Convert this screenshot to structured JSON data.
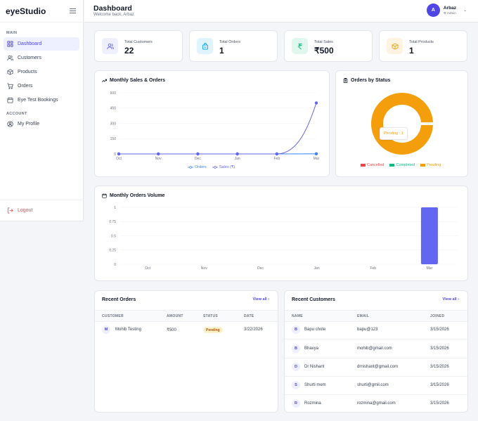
{
  "app": {
    "name": "eyeStudio"
  },
  "sidebar": {
    "sections": {
      "main": "MAIN",
      "account": "ACCOUNT"
    },
    "items": [
      {
        "label": "Dashboard",
        "icon": "grid-icon",
        "active": true
      },
      {
        "label": "Customers",
        "icon": "users-icon"
      },
      {
        "label": "Products",
        "icon": "box-icon"
      },
      {
        "label": "Orders",
        "icon": "cart-icon"
      },
      {
        "label": "Eye Test Bookings",
        "icon": "calendar-icon"
      }
    ],
    "account_items": [
      {
        "label": "My Profile",
        "icon": "user-circle-icon"
      }
    ],
    "logout_label": "Logout"
  },
  "header": {
    "title": "Dashboard",
    "welcome": "Welcome back, Arbaz",
    "user": {
      "initial": "A",
      "name": "Arbaz",
      "role": "Admin"
    }
  },
  "stats": [
    {
      "label": "Total Customers",
      "value": "22",
      "icon": "users-icon",
      "color": "#6366f1",
      "bg": "#eef0ff"
    },
    {
      "label": "Total Orders",
      "value": "1",
      "icon": "bag-icon",
      "color": "#0ea5e9",
      "bg": "#e0f4fd"
    },
    {
      "label": "Total Sales",
      "value": "₹500",
      "icon": "rupee-icon",
      "color": "#10b981",
      "bg": "#e0f7ee"
    },
    {
      "label": "Total Products",
      "value": "1",
      "icon": "box-icon",
      "color": "#f59e0b",
      "bg": "#fdf3e0"
    }
  ],
  "sales_chart": {
    "title": "Monthly Sales & Orders",
    "chart_data": {
      "type": "line",
      "categories": [
        "Oct",
        "Nov",
        "Dec",
        "Jan",
        "Feb",
        "Mar"
      ],
      "series": [
        {
          "name": "Orders",
          "values": [
            0,
            0,
            0,
            0,
            0,
            1
          ],
          "color": "#3b82f6"
        },
        {
          "name": "Sales (₹)",
          "values": [
            0,
            0,
            0,
            0,
            0,
            500
          ],
          "color": "#6366f1"
        }
      ],
      "yticks": [
        "0",
        "150",
        "300",
        "450",
        "600"
      ],
      "ylim": [
        0,
        600
      ]
    }
  },
  "status_chart": {
    "title": "Orders by Status",
    "tooltip": "Pending : 1",
    "chart_data": {
      "type": "pie",
      "labels": [
        "Cancelled",
        "Completed",
        "Pending"
      ],
      "values": [
        0,
        0,
        1
      ],
      "colors": [
        "#ef4444",
        "#10b981",
        "#f59e0b"
      ]
    }
  },
  "volume_chart": {
    "title": "Monthly Orders Volume",
    "chart_data": {
      "type": "bar",
      "categories": [
        "Oct",
        "Nov",
        "Dec",
        "Jan",
        "Feb",
        "Mar"
      ],
      "values": [
        0,
        0,
        0,
        0,
        0,
        1
      ],
      "yticks": [
        "0",
        "0.25",
        "0.5",
        "0.75",
        "1"
      ],
      "ylim": [
        0,
        1
      ],
      "color": "#6366f1"
    }
  },
  "recent_orders": {
    "title": "Recent Orders",
    "view_all": "View all",
    "columns": [
      "CUSTOMER",
      "AMOUNT",
      "STATUS",
      "DATE"
    ],
    "rows": [
      {
        "initial": "M",
        "customer": "Mohib Testing",
        "amount": "₹500",
        "status": "Pending",
        "date": "3/22/2026"
      }
    ]
  },
  "recent_customers": {
    "title": "Recent Customers",
    "view_all": "View all",
    "columns": [
      "NAME",
      "EMAIL",
      "JOINED"
    ],
    "rows": [
      {
        "initial": "B",
        "name": "Bapu chote",
        "email": "bapu@123",
        "joined": "3/15/2026"
      },
      {
        "initial": "B",
        "name": "Bhavya",
        "email": "mohib@gmail.com",
        "joined": "3/15/2026"
      },
      {
        "initial": "D",
        "name": "Dr Nishant",
        "email": "drnishant@gmail.com",
        "joined": "3/15/2026"
      },
      {
        "initial": "S",
        "name": "Shurti mem",
        "email": "shurti@gmil.com",
        "joined": "3/15/2026"
      },
      {
        "initial": "R",
        "name": "Rozmina",
        "email": "rozmina@gmail.com",
        "joined": "3/15/2026"
      }
    ]
  }
}
